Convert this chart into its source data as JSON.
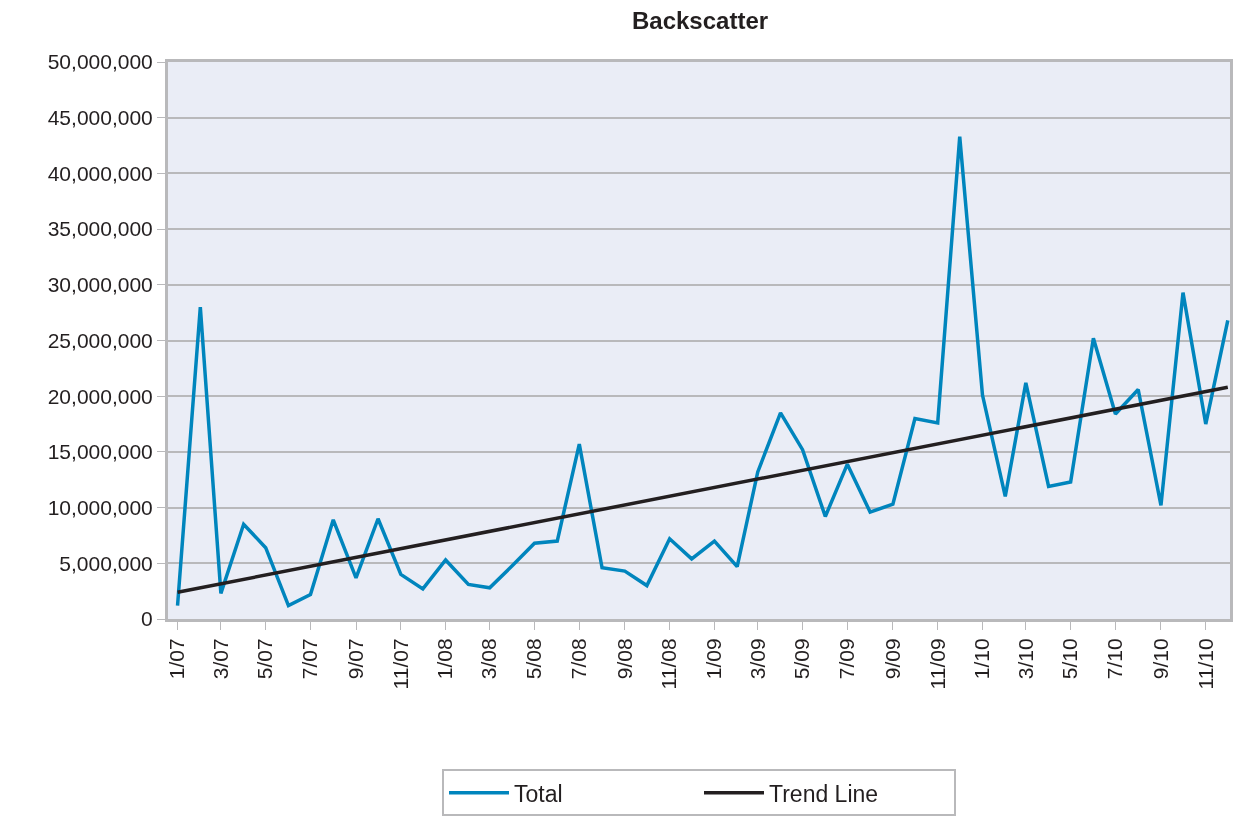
{
  "chart_data": {
    "type": "line",
    "title": "Backscatter",
    "x": [
      "2007-01",
      "2007-02",
      "2007-03",
      "2007-04",
      "2007-05",
      "2007-06",
      "2007-07",
      "2007-08",
      "2007-09",
      "2007-10",
      "2007-11",
      "2007-12",
      "2008-01",
      "2008-02",
      "2008-03",
      "2008-04",
      "2008-05",
      "2008-06",
      "2008-07",
      "2008-08",
      "2008-09",
      "2008-10",
      "2008-11",
      "2008-12",
      "2009-01",
      "2009-02",
      "2009-03",
      "2009-04",
      "2009-05",
      "2009-06",
      "2009-07",
      "2009-08",
      "2009-09",
      "2009-10",
      "2009-11",
      "2009-12",
      "2010-01",
      "2010-02",
      "2010-03",
      "2010-04",
      "2010-05",
      "2010-06",
      "2010-07",
      "2010-08",
      "2010-09",
      "2010-10",
      "2010-11",
      "2010-12"
    ],
    "series": [
      {
        "name": "Total",
        "color": "#0085bd",
        "values": [
          1200000,
          28000000,
          2300000,
          8500000,
          6400000,
          1200000,
          2200000,
          8900000,
          3700000,
          9000000,
          4000000,
          2700000,
          5300000,
          3100000,
          2800000,
          4800000,
          6800000,
          7000000,
          15700000,
          4600000,
          4300000,
          3000000,
          7200000,
          5400000,
          7000000,
          4700000,
          13200000,
          18500000,
          15200000,
          9200000,
          13900000,
          9600000,
          10300000,
          18000000,
          17600000,
          43300000,
          20100000,
          11000000,
          21200000,
          11900000,
          12300000,
          25200000,
          18400000,
          20600000,
          10200000,
          29300000,
          17500000,
          26800000
        ]
      },
      {
        "name": "Trend Line",
        "type": "line",
        "color": "#231f20",
        "x": [
          "2007-01",
          "2010-12"
        ],
        "values": [
          2400000,
          20800000
        ]
      }
    ],
    "xlim": [
      "2006-12-19",
      "2010-12-04"
    ],
    "xticks": [
      {
        "value": "2007-01",
        "label": "1/07"
      },
      {
        "value": "2007-03",
        "label": "3/07"
      },
      {
        "value": "2007-05",
        "label": "5/07"
      },
      {
        "value": "2007-07",
        "label": "7/07"
      },
      {
        "value": "2007-09",
        "label": "9/07"
      },
      {
        "value": "2007-11",
        "label": "11/07"
      },
      {
        "value": "2008-01",
        "label": "1/08"
      },
      {
        "value": "2008-03",
        "label": "3/08"
      },
      {
        "value": "2008-05",
        "label": "5/08"
      },
      {
        "value": "2008-07",
        "label": "7/08"
      },
      {
        "value": "2008-09",
        "label": "9/08"
      },
      {
        "value": "2008-11",
        "label": "11/08"
      },
      {
        "value": "2009-01",
        "label": "1/09"
      },
      {
        "value": "2009-03",
        "label": "3/09"
      },
      {
        "value": "2009-05",
        "label": "5/09"
      },
      {
        "value": "2009-07",
        "label": "7/09"
      },
      {
        "value": "2009-09",
        "label": "9/09"
      },
      {
        "value": "2009-11",
        "label": "11/09"
      },
      {
        "value": "2010-01",
        "label": "1/10"
      },
      {
        "value": "2010-03",
        "label": "3/10"
      },
      {
        "value": "2010-05",
        "label": "5/10"
      },
      {
        "value": "2010-07",
        "label": "7/10"
      },
      {
        "value": "2010-09",
        "label": "9/10"
      },
      {
        "value": "2010-11",
        "label": "11/10"
      }
    ],
    "ylim": [
      0,
      50000000
    ],
    "yticks": [
      0,
      {
        "value": 5000000,
        "label": "5,000,000"
      },
      {
        "value": 10000000,
        "label": "10,000,000"
      },
      {
        "value": 15000000,
        "label": "15,000,000"
      },
      {
        "value": 20000000,
        "label": "20,000,000"
      },
      {
        "value": 25000000,
        "label": "25,000,000"
      },
      {
        "value": 30000000,
        "label": "30,000,000"
      },
      {
        "value": 35000000,
        "label": "35,000,000"
      },
      {
        "value": 40000000,
        "label": "40,000,000"
      },
      {
        "value": 45000000,
        "label": "45,000,000"
      },
      {
        "value": 50000000,
        "label": "50,000,000"
      }
    ],
    "grid": "y",
    "legend": "bottom",
    "marker": "none",
    "line_style": "solid"
  }
}
